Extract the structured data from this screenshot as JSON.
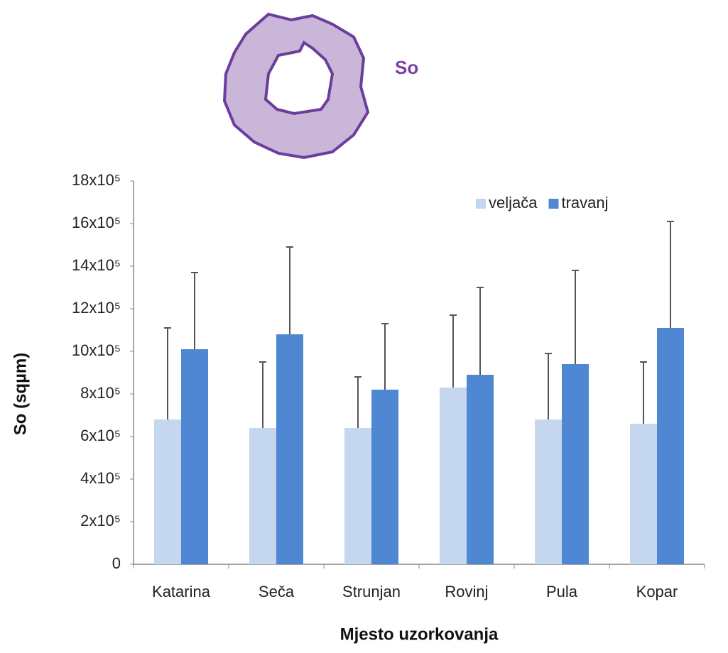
{
  "chart_data": {
    "type": "bar",
    "annotation": "So",
    "y_label": "So (sqµm)",
    "x_label": "Mjesto uzorkovanja",
    "categories": [
      "Katarina",
      "Seča",
      "Strunjan",
      "Rovinj",
      "Pula",
      "Kopar"
    ],
    "series": [
      {
        "name": "veljača",
        "color": "#c5d7ee",
        "values": [
          680000,
          640000,
          640000,
          830000,
          680000,
          660000
        ],
        "errors": [
          430000,
          310000,
          240000,
          340000,
          310000,
          290000
        ]
      },
      {
        "name": "travanj",
        "color": "#4f87d3",
        "values": [
          1010000,
          1080000,
          820000,
          890000,
          940000,
          1110000
        ],
        "errors": [
          360000,
          410000,
          310000,
          410000,
          440000,
          500000
        ]
      }
    ],
    "ylim": [
      0,
      1800000
    ],
    "yticks": [
      0,
      {
        "value": 200000,
        "label": "2x10⁵"
      },
      {
        "value": 400000,
        "label": "4x10⁵"
      },
      {
        "value": 600000,
        "label": "6x10⁵"
      },
      {
        "value": 800000,
        "label": "8x10⁵"
      },
      {
        "value": 1000000,
        "label": "10x10⁵"
      },
      {
        "value": 1200000,
        "label": "12x10⁵"
      },
      {
        "value": 1400000,
        "label": "14x10⁵"
      },
      {
        "value": 1600000,
        "label": "16x10⁵"
      },
      {
        "value": 1800000,
        "label": "18x10⁵"
      }
    ],
    "legend": "top-right",
    "error_color": "#555555"
  }
}
